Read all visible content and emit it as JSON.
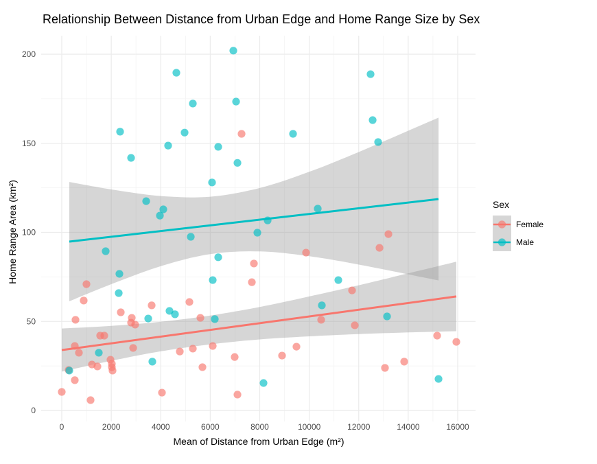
{
  "chart_data": {
    "type": "scatter",
    "title": "Relationship Between Distance from Urban Edge and Home Range Size by Sex",
    "xlabel": "Mean of Distance from Urban Edge (m²)",
    "ylabel": "Home Range Area (km²)",
    "xlim": [
      -400,
      16700
    ],
    "ylim": [
      -3,
      210
    ],
    "x_ticks": [
      0,
      2000,
      4000,
      6000,
      8000,
      10000,
      12000,
      14000,
      16000
    ],
    "y_ticks": [
      0,
      50,
      100,
      150,
      200
    ],
    "grid": true,
    "legend": {
      "title": "Sex",
      "placement": "right"
    },
    "series": [
      {
        "name": "Female",
        "color": "#F8766D",
        "points": [
          [
            7266,
            155.3
          ],
          [
            13200,
            99
          ],
          [
            12840,
            91.3
          ],
          [
            9872,
            88.6
          ],
          [
            7765,
            82.5
          ],
          [
            7682,
            72
          ],
          [
            11730,
            67.4
          ],
          [
            998,
            70.9
          ],
          [
            887,
            61.7
          ],
          [
            5158,
            60.9
          ],
          [
            3633,
            59
          ],
          [
            2385,
            55.1
          ],
          [
            5602,
            52
          ],
          [
            10483,
            50.9
          ],
          [
            555,
            50.9
          ],
          [
            2829,
            52
          ],
          [
            2801,
            49.3
          ],
          [
            2967,
            48.2
          ],
          [
            11841,
            47.8
          ],
          [
            1553,
            42
          ],
          [
            1719,
            42
          ],
          [
            15169,
            42
          ],
          [
            15945,
            38.5
          ],
          [
            527,
            36.2
          ],
          [
            693,
            32.4
          ],
          [
            2884,
            35.1
          ],
          [
            4770,
            33.1
          ],
          [
            5297,
            34.7
          ],
          [
            6101,
            36.2
          ],
          [
            9484,
            35.8
          ],
          [
            8902,
            30.8
          ],
          [
            6988,
            30
          ],
          [
            1969,
            28.5
          ],
          [
            2024,
            26.2
          ],
          [
            2024,
            24.3
          ],
          [
            2052,
            22.4
          ],
          [
            1220,
            25.8
          ],
          [
            1442,
            24.7
          ],
          [
            5685,
            24.3
          ],
          [
            13061,
            23.9
          ],
          [
            13838,
            27.4
          ],
          [
            277,
            22.7
          ],
          [
            527,
            17
          ],
          [
            0,
            10.4
          ],
          [
            4049,
            10
          ],
          [
            7100,
            8.9
          ],
          [
            1165,
            5.8
          ]
        ],
        "fit": {
          "x": [
            0,
            15945
          ],
          "y": [
            33.9,
            64.0
          ]
        },
        "ci": {
          "x": [
            0,
            2000,
            4000,
            6000,
            8000,
            10000,
            12000,
            14000,
            15945
          ],
          "lower": [
            21.8,
            27.9,
            33.2,
            37.1,
            39.9,
            41.6,
            42.9,
            43.8,
            44.5
          ],
          "upper": [
            46.0,
            47.5,
            49.8,
            53.3,
            58.1,
            64.0,
            70.3,
            77.0,
            83.5
          ]
        }
      },
      {
        "name": "Male",
        "color": "#00BFC4",
        "points": [
          [
            6933,
            202
          ],
          [
            4631,
            189.6
          ],
          [
            12479,
            188.8
          ],
          [
            5297,
            172.3
          ],
          [
            7044,
            173.4
          ],
          [
            12563,
            163
          ],
          [
            12784,
            150.7
          ],
          [
            2357,
            156.5
          ],
          [
            4964,
            156
          ],
          [
            9346,
            155.3
          ],
          [
            4298,
            148.7
          ],
          [
            6323,
            148
          ],
          [
            7100,
            139
          ],
          [
            2801,
            141.8
          ],
          [
            6073,
            128
          ],
          [
            3411,
            117.5
          ],
          [
            4104,
            112.9
          ],
          [
            10344,
            113.3
          ],
          [
            3966,
            109.4
          ],
          [
            8319,
            106.7
          ],
          [
            7904,
            99.8
          ],
          [
            5214,
            97.5
          ],
          [
            1775,
            89.4
          ],
          [
            6323,
            86
          ],
          [
            2329,
            76.7
          ],
          [
            6101,
            73.2
          ],
          [
            11176,
            73.2
          ],
          [
            2302,
            65.9
          ],
          [
            10510,
            59
          ],
          [
            4354,
            55.9
          ],
          [
            4575,
            54
          ],
          [
            3494,
            51.6
          ],
          [
            6184,
            51.3
          ],
          [
            13145,
            52.8
          ],
          [
            1497,
            32.4
          ],
          [
            3660,
            27.4
          ],
          [
            305,
            22.4
          ],
          [
            8153,
            15.4
          ],
          [
            15225,
            17.7
          ]
        ],
        "fit": {
          "x": [
            305,
            15225
          ],
          "y": [
            94.8,
            118.7
          ]
        },
        "ci": {
          "x": [
            305,
            2000,
            4000,
            6000,
            8000,
            10000,
            12000,
            15225
          ],
          "lower": [
            61.3,
            70.9,
            81.0,
            87.8,
            89.3,
            86.6,
            81.9,
            73.0
          ],
          "upper": [
            128.3,
            124.1,
            120.4,
            120.0,
            124.9,
            134.0,
            145.1,
            164.4
          ]
        }
      }
    ]
  }
}
